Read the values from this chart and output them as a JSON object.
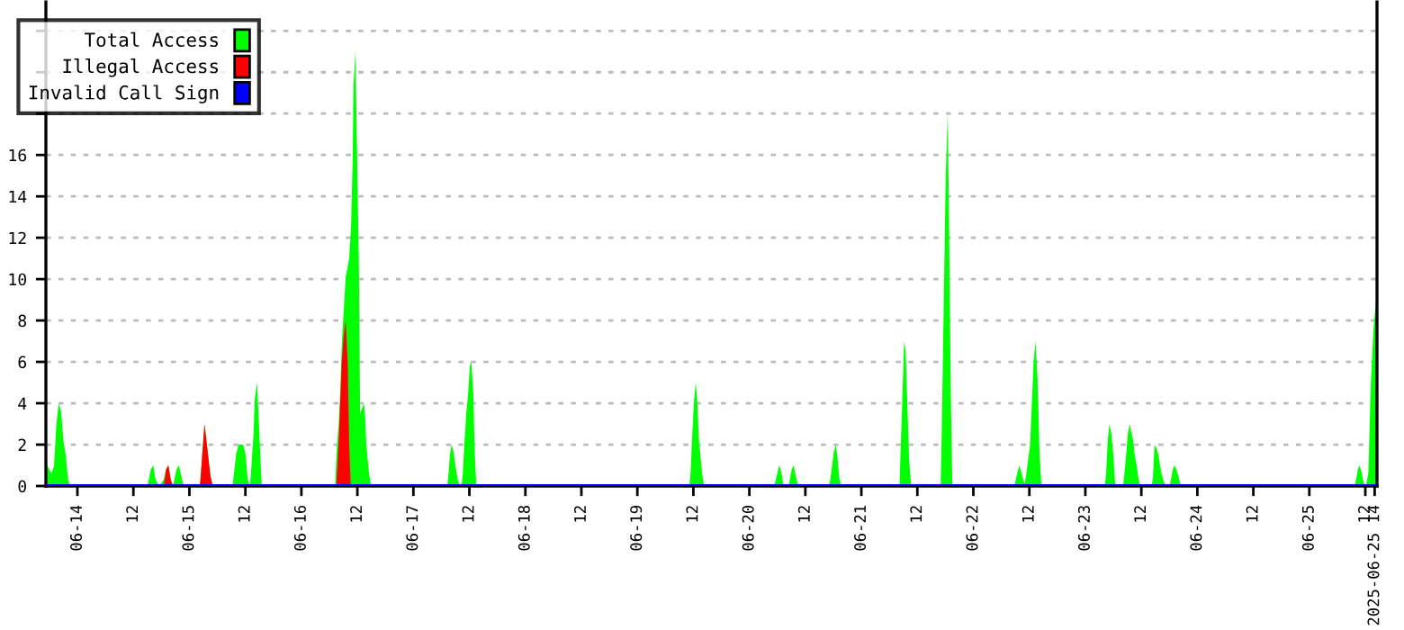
{
  "chart_data": {
    "type": "area",
    "xlim": [
      "2025-06-13T17:15",
      "2025-06-25T14:30"
    ],
    "ylim": [
      0,
      23.4
    ],
    "yticks": [
      0,
      2,
      4,
      6,
      8,
      10,
      12,
      14,
      16,
      {
        "value": 18,
        "label": null
      },
      {
        "value": 20,
        "label": null
      },
      {
        "value": 22,
        "label": null
      }
    ],
    "xticks": [
      {
        "value": "2025-06-14",
        "label": "06-14"
      },
      {
        "value": "2025-06-14T12:00",
        "label": "12"
      },
      {
        "value": "2025-06-15",
        "label": "06-15"
      },
      {
        "value": "2025-06-15T12:00",
        "label": "12"
      },
      {
        "value": "2025-06-16",
        "label": "06-16"
      },
      {
        "value": "2025-06-16T12:00",
        "label": "12"
      },
      {
        "value": "2025-06-17",
        "label": "06-17"
      },
      {
        "value": "2025-06-17T12:00",
        "label": "12"
      },
      {
        "value": "2025-06-18",
        "label": "06-18"
      },
      {
        "value": "2025-06-18T12:00",
        "label": "12"
      },
      {
        "value": "2025-06-19",
        "label": "06-19"
      },
      {
        "value": "2025-06-19T12:00",
        "label": "12"
      },
      {
        "value": "2025-06-20",
        "label": "06-20"
      },
      {
        "value": "2025-06-20T12:00",
        "label": "12"
      },
      {
        "value": "2025-06-21",
        "label": "06-21"
      },
      {
        "value": "2025-06-21T12:00",
        "label": "12"
      },
      {
        "value": "2025-06-22",
        "label": "06-22"
      },
      {
        "value": "2025-06-22T12:00",
        "label": "12"
      },
      {
        "value": "2025-06-23",
        "label": "06-23"
      },
      {
        "value": "2025-06-23T12:00",
        "label": "12"
      },
      {
        "value": "2025-06-24",
        "label": "06-24"
      },
      {
        "value": "2025-06-24T12:00",
        "label": "12"
      },
      {
        "value": "2025-06-25",
        "label": "06-25"
      },
      {
        "value": "2025-06-25T12:00",
        "label": "12"
      },
      {
        "value": "2025-06-25T14:00",
        "label": "2025-06-25 14"
      }
    ],
    "grid": "y",
    "legend": "top left",
    "series": [
      {
        "name": "Total Access",
        "color": "#00ff00",
        "x": [
          "2025-06-13T17:15",
          "2025-06-13T17:30",
          "2025-06-13T18:30",
          "2025-06-13T19:00",
          "2025-06-13T19:30",
          "2025-06-13T20:00",
          "2025-06-13T20:30",
          "2025-06-13T21:00",
          "2025-06-13T21:30",
          "2025-06-13T22:00",
          "2025-06-13T22:30",
          "2025-06-14T15:00",
          "2025-06-14T15:45",
          "2025-06-14T16:15",
          "2025-06-14T16:45",
          "2025-06-14T17:30",
          "2025-06-14T18:30",
          "2025-06-14T19:00",
          "2025-06-14T19:30",
          "2025-06-14T20:00",
          "2025-06-14T20:30",
          "2025-06-14T21:15",
          "2025-06-14T21:45",
          "2025-06-14T22:15",
          "2025-06-14T22:45",
          "2025-06-15T02:15",
          "2025-06-15T02:30",
          "2025-06-15T03:00",
          "2025-06-15T03:15",
          "2025-06-15T03:30",
          "2025-06-15T04:00",
          "2025-06-15T04:30",
          "2025-06-15T05:00",
          "2025-06-15T09:15",
          "2025-06-15T09:30",
          "2025-06-15T10:00",
          "2025-06-15T10:30",
          "2025-06-15T11:30",
          "2025-06-15T12:00",
          "2025-06-15T12:15",
          "2025-06-15T12:30",
          "2025-06-15T13:00",
          "2025-06-15T13:15",
          "2025-06-15T13:45",
          "2025-06-15T14:00",
          "2025-06-15T14:30",
          "2025-06-15T14:45",
          "2025-06-15T15:15",
          "2025-06-15T15:30",
          "2025-06-16T07:15",
          "2025-06-16T07:30",
          "2025-06-16T08:00",
          "2025-06-16T08:20",
          "2025-06-16T08:40",
          "2025-06-16T09:05",
          "2025-06-16T09:30",
          "2025-06-16T10:15",
          "2025-06-16T10:40",
          "2025-06-16T11:00",
          "2025-06-16T11:10",
          "2025-06-16T11:35",
          "2025-06-16T11:50",
          "2025-06-16T12:20",
          "2025-06-16T12:35",
          "2025-06-16T13:25",
          "2025-06-16T13:40",
          "2025-06-16T13:55",
          "2025-06-16T14:30",
          "2025-06-16T14:55",
          "2025-06-17T07:15",
          "2025-06-17T07:30",
          "2025-06-17T07:50",
          "2025-06-17T08:10",
          "2025-06-17T08:35",
          "2025-06-17T09:00",
          "2025-06-17T09:30",
          "2025-06-17T10:00",
          "2025-06-17T10:20",
          "2025-06-17T10:35",
          "2025-06-17T11:00",
          "2025-06-17T11:20",
          "2025-06-17T11:45",
          "2025-06-17T12:05",
          "2025-06-17T12:25",
          "2025-06-17T12:50",
          "2025-06-17T13:10",
          "2025-06-17T13:30",
          "2025-06-19T11:10",
          "2025-06-19T11:25",
          "2025-06-19T11:45",
          "2025-06-19T12:10",
          "2025-06-19T12:30",
          "2025-06-19T12:50",
          "2025-06-19T13:10",
          "2025-06-19T13:30",
          "2025-06-19T13:55",
          "2025-06-19T14:20",
          "2025-06-20T05:20",
          "2025-06-20T05:40",
          "2025-06-20T06:05",
          "2025-06-20T06:25",
          "2025-06-20T06:50",
          "2025-06-20T07:20",
          "2025-06-20T08:25",
          "2025-06-20T08:40",
          "2025-06-20T09:05",
          "2025-06-20T09:30",
          "2025-06-20T09:50",
          "2025-06-20T10:15",
          "2025-06-20T10:40",
          "2025-06-20T17:00",
          "2025-06-20T17:20",
          "2025-06-20T17:45",
          "2025-06-20T18:05",
          "2025-06-20T18:30",
          "2025-06-20T18:50",
          "2025-06-20T19:15",
          "2025-06-20T19:40",
          "2025-06-21T08:10",
          "2025-06-21T08:25",
          "2025-06-21T08:45",
          "2025-06-21T09:10",
          "2025-06-21T09:30",
          "2025-06-21T09:55",
          "2025-06-21T10:15",
          "2025-06-21T10:40",
          "2025-06-21T17:00",
          "2025-06-21T17:15",
          "2025-06-21T17:40",
          "2025-06-21T18:05",
          "2025-06-21T18:30",
          "2025-06-21T18:45",
          "2025-06-21T19:10",
          "2025-06-21T19:30",
          "2025-06-22T08:50",
          "2025-06-22T09:05",
          "2025-06-22T09:30",
          "2025-06-22T09:50",
          "2025-06-22T10:15",
          "2025-06-22T10:40",
          "2025-06-22T11:00",
          "2025-06-22T11:25",
          "2025-06-22T12:10",
          "2025-06-22T12:55",
          "2025-06-22T13:20",
          "2025-06-22T13:45",
          "2025-06-22T14:10",
          "2025-06-22T14:35",
          "2025-06-23T04:10",
          "2025-06-23T04:25",
          "2025-06-23T04:50",
          "2025-06-23T05:10",
          "2025-06-23T05:35",
          "2025-06-23T06:00",
          "2025-06-23T06:25",
          "2025-06-23T08:05",
          "2025-06-23T08:20",
          "2025-06-23T08:45",
          "2025-06-23T09:05",
          "2025-06-23T09:30",
          "2025-06-23T09:50",
          "2025-06-23T10:15",
          "2025-06-23T10:35",
          "2025-06-23T11:00",
          "2025-06-23T11:25",
          "2025-06-23T11:45",
          "2025-06-23T14:15",
          "2025-06-23T14:30",
          "2025-06-23T14:50",
          "2025-06-23T15:15",
          "2025-06-23T15:40",
          "2025-06-23T16:00",
          "2025-06-23T16:25",
          "2025-06-23T16:50",
          "2025-06-23T17:15",
          "2025-06-23T18:05",
          "2025-06-23T18:20",
          "2025-06-23T18:45",
          "2025-06-23T19:05",
          "2025-06-23T19:30",
          "2025-06-23T19:55",
          "2025-06-23T20:20",
          "2025-06-23T20:40",
          "2025-06-25T09:45",
          "2025-06-25T10:00",
          "2025-06-25T10:25",
          "2025-06-25T10:45",
          "2025-06-25T11:10",
          "2025-06-25T11:30",
          "2025-06-25T11:50",
          "2025-06-25T12:10",
          "2025-06-25T12:40",
          "2025-06-25T13:10",
          "2025-06-25T13:45",
          "2025-06-25T14:20"
        ],
        "values": [
          1,
          1,
          0.6,
          1,
          3,
          4,
          3.6,
          2.2,
          1.5,
          0.3,
          0,
          0,
          0.8,
          1,
          0.3,
          0,
          0.3,
          0.8,
          1,
          0.3,
          0,
          0.8,
          1,
          0.5,
          0,
          0,
          0.7,
          2.3,
          3,
          2.5,
          1.5,
          0.5,
          0,
          0,
          0.5,
          1.5,
          2,
          2,
          1.6,
          1,
          0.3,
          0,
          0.8,
          2.5,
          4.2,
          5,
          3.8,
          1.2,
          0,
          0,
          1.5,
          3,
          4.6,
          6.9,
          8.5,
          10.1,
          11,
          12.6,
          15.9,
          19.3,
          21,
          17.5,
          10.5,
          3.5,
          4,
          3.3,
          2,
          0.6,
          0,
          0,
          0.5,
          1.5,
          2,
          1.7,
          1,
          0.3,
          0,
          0,
          0.6,
          2.3,
          3.5,
          4.5,
          5.8,
          6,
          4.5,
          1.5,
          0,
          0,
          0.7,
          2.4,
          4.2,
          5,
          4.2,
          2.3,
          1.5,
          0.5,
          0,
          0,
          0.3,
          0.7,
          1,
          0.7,
          0,
          0,
          0.3,
          0.8,
          1,
          0.6,
          0.2,
          0,
          0,
          0.3,
          1,
          1.6,
          2,
          1.5,
          0.4,
          0,
          0,
          1.7,
          4,
          7,
          6.5,
          3.5,
          1.2,
          0,
          0,
          2.9,
          9,
          15,
          18,
          13.5,
          4.5,
          0,
          0,
          0.3,
          0.7,
          1,
          0.7,
          0.3,
          0.1,
          0.7,
          2,
          6,
          7,
          5.2,
          1.7,
          0,
          0,
          0.5,
          2.3,
          3,
          2.5,
          1.5,
          0,
          0,
          0.5,
          1.5,
          2.5,
          3,
          2.6,
          2.2,
          1.5,
          1,
          0.3,
          0,
          0,
          0.5,
          2,
          1.8,
          1.5,
          1,
          0.5,
          0.2,
          0,
          0,
          0.3,
          0.8,
          1,
          0.8,
          0.5,
          0.1,
          0,
          0,
          0.3,
          0.8,
          1,
          0.7,
          0.3,
          0,
          0,
          0.7,
          4.9,
          7.6,
          9
        ]
      },
      {
        "name": "Illegal Access",
        "color": "#ff0000",
        "x": [
          "2025-06-14T18:30",
          "2025-06-14T19:00",
          "2025-06-14T19:30",
          "2025-06-14T20:00",
          "2025-06-14T20:30",
          "2025-06-15T02:15",
          "2025-06-15T02:30",
          "2025-06-15T03:00",
          "2025-06-15T03:15",
          "2025-06-15T03:30",
          "2025-06-15T04:00",
          "2025-06-15T04:30",
          "2025-06-15T05:00",
          "2025-06-16T07:30",
          "2025-06-16T08:00",
          "2025-06-16T08:40",
          "2025-06-16T09:05",
          "2025-06-16T09:30",
          "2025-06-16T09:55",
          "2025-06-16T10:15",
          "2025-06-16T10:35"
        ],
        "values": [
          0,
          0.8,
          1,
          0.3,
          0,
          0,
          0.7,
          2.3,
          3,
          2.5,
          1.5,
          0.5,
          0,
          0,
          2.2,
          6,
          7.3,
          8,
          6,
          2,
          0
        ]
      },
      {
        "name": "Invalid Call Sign",
        "color": "#0000ff",
        "type": "line",
        "x": [
          "2025-06-13T17:15",
          "2025-06-25T14:30"
        ],
        "values": [
          0,
          0
        ]
      }
    ]
  }
}
